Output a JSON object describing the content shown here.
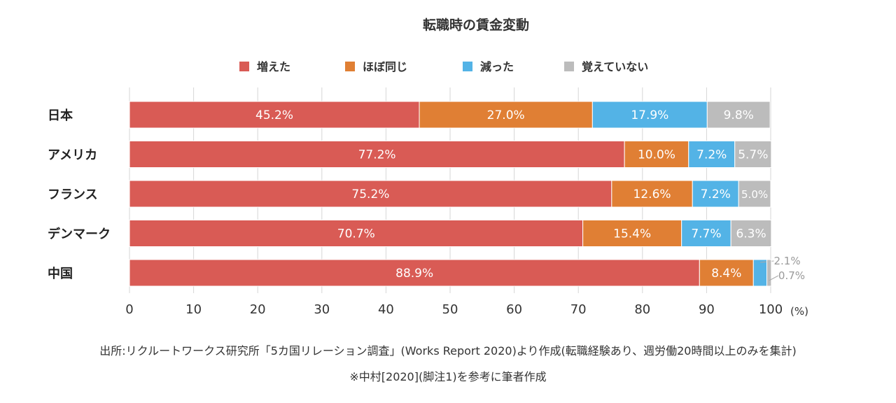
{
  "chart_data": {
    "type": "bar",
    "orientation": "horizontal",
    "stacked": true,
    "title": "転職時の賃金変動",
    "categories": [
      "日本",
      "アメリカ",
      "フランス",
      "デンマーク",
      "中国"
    ],
    "series": [
      {
        "name": "増えた",
        "color": "#d95b55",
        "values": [
          45.2,
          77.2,
          75.2,
          70.7,
          88.9
        ]
      },
      {
        "name": "ほぼ同じ",
        "color": "#e07f34",
        "values": [
          27.0,
          10.0,
          12.6,
          15.4,
          8.4
        ]
      },
      {
        "name": "減った",
        "color": "#53b3e6",
        "values": [
          17.9,
          7.2,
          7.2,
          7.7,
          2.1
        ]
      },
      {
        "name": "覚えていない",
        "color": "#bcbcbc",
        "values": [
          9.8,
          5.7,
          5.0,
          6.3,
          0.7
        ]
      }
    ],
    "labels": [
      [
        "45.2%",
        "27.0%",
        "17.9%",
        "9.8%"
      ],
      [
        "77.2%",
        "10.0%",
        "7.2%",
        "5.7%"
      ],
      [
        "75.2%",
        "12.6%",
        "7.2%",
        "5.0%"
      ],
      [
        "70.7%",
        "15.4%",
        "7.7%",
        "6.3%"
      ],
      [
        "88.9%",
        "8.4%",
        "2.1%",
        "0.7%"
      ]
    ],
    "xlim": [
      0,
      100
    ],
    "xticks": [
      0,
      10,
      20,
      30,
      40,
      50,
      60,
      70,
      80,
      90,
      100
    ],
    "xunit": "(%)",
    "legend_position": "top",
    "grid": true
  },
  "notes": {
    "source": "出所:リクルートワークス研究所「5カ国リレーション調査」(Works Report 2020)より作成(転職経験あり、週労働20時間以上のみを集計)",
    "reference": "※中村[2020](脚注1)を参考に筆者作成"
  }
}
